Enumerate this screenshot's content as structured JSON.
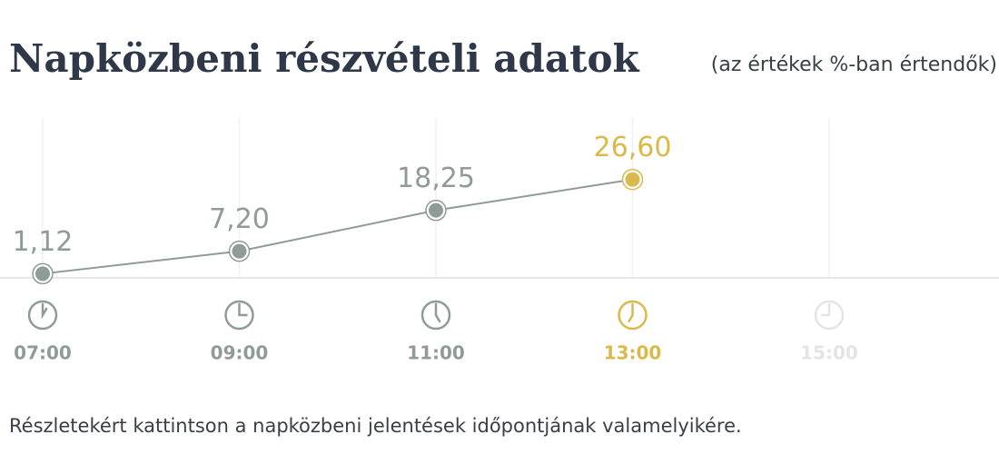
{
  "chart_data": {
    "type": "line",
    "title": "Napközbeni részvételi adatok",
    "subtitle": "(az értékek %-ban értendők)",
    "categories": [
      "07:00",
      "09:00",
      "11:00",
      "13:00",
      "15:00"
    ],
    "values": [
      1.12,
      7.2,
      18.25,
      26.6,
      null
    ],
    "value_labels": [
      "1,12",
      "7,20",
      "18,25",
      "26,60",
      null
    ],
    "color": "#8f9b97",
    "category_colors": [
      "#8f9b97",
      "#8f9b97",
      "#8f9b97",
      "#d9b94b",
      "#e3e5e4"
    ],
    "ylim": [
      0,
      40
    ],
    "grid": true,
    "footnote": "Részletekért kattintson a napközbeni jelentések időpontjának valamelyikére."
  }
}
